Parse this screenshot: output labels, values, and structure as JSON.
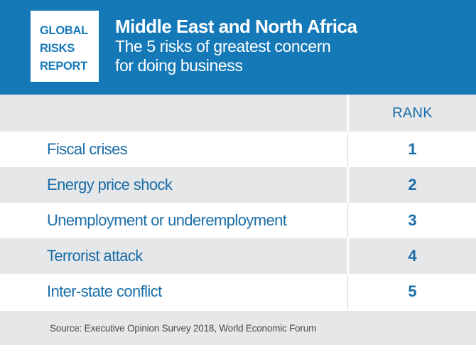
{
  "logo": {
    "lines": [
      "GLOBAL",
      "RISKS",
      "REPORT"
    ]
  },
  "header": {
    "title": "Middle East and North Africa",
    "subtitle_line1": "The 5 risks of greatest concern",
    "subtitle_line2": "for doing business"
  },
  "table": {
    "rank_header": "RANK",
    "rows": [
      {
        "risk": "Fiscal crises",
        "rank": "1"
      },
      {
        "risk": "Energy price shock",
        "rank": "2"
      },
      {
        "risk": "Unemployment or underemployment",
        "rank": "3"
      },
      {
        "risk": "Terrorist attack",
        "rank": "4"
      },
      {
        "risk": "Inter-state conflict",
        "rank": "5"
      }
    ]
  },
  "footer": {
    "source": "Source: Executive Opinion Survey 2018, World Economic Forum"
  },
  "colors": {
    "header_bg": "#1579b8",
    "text_blue": "#1b6ea8",
    "row_gray": "#e6e7e8"
  }
}
